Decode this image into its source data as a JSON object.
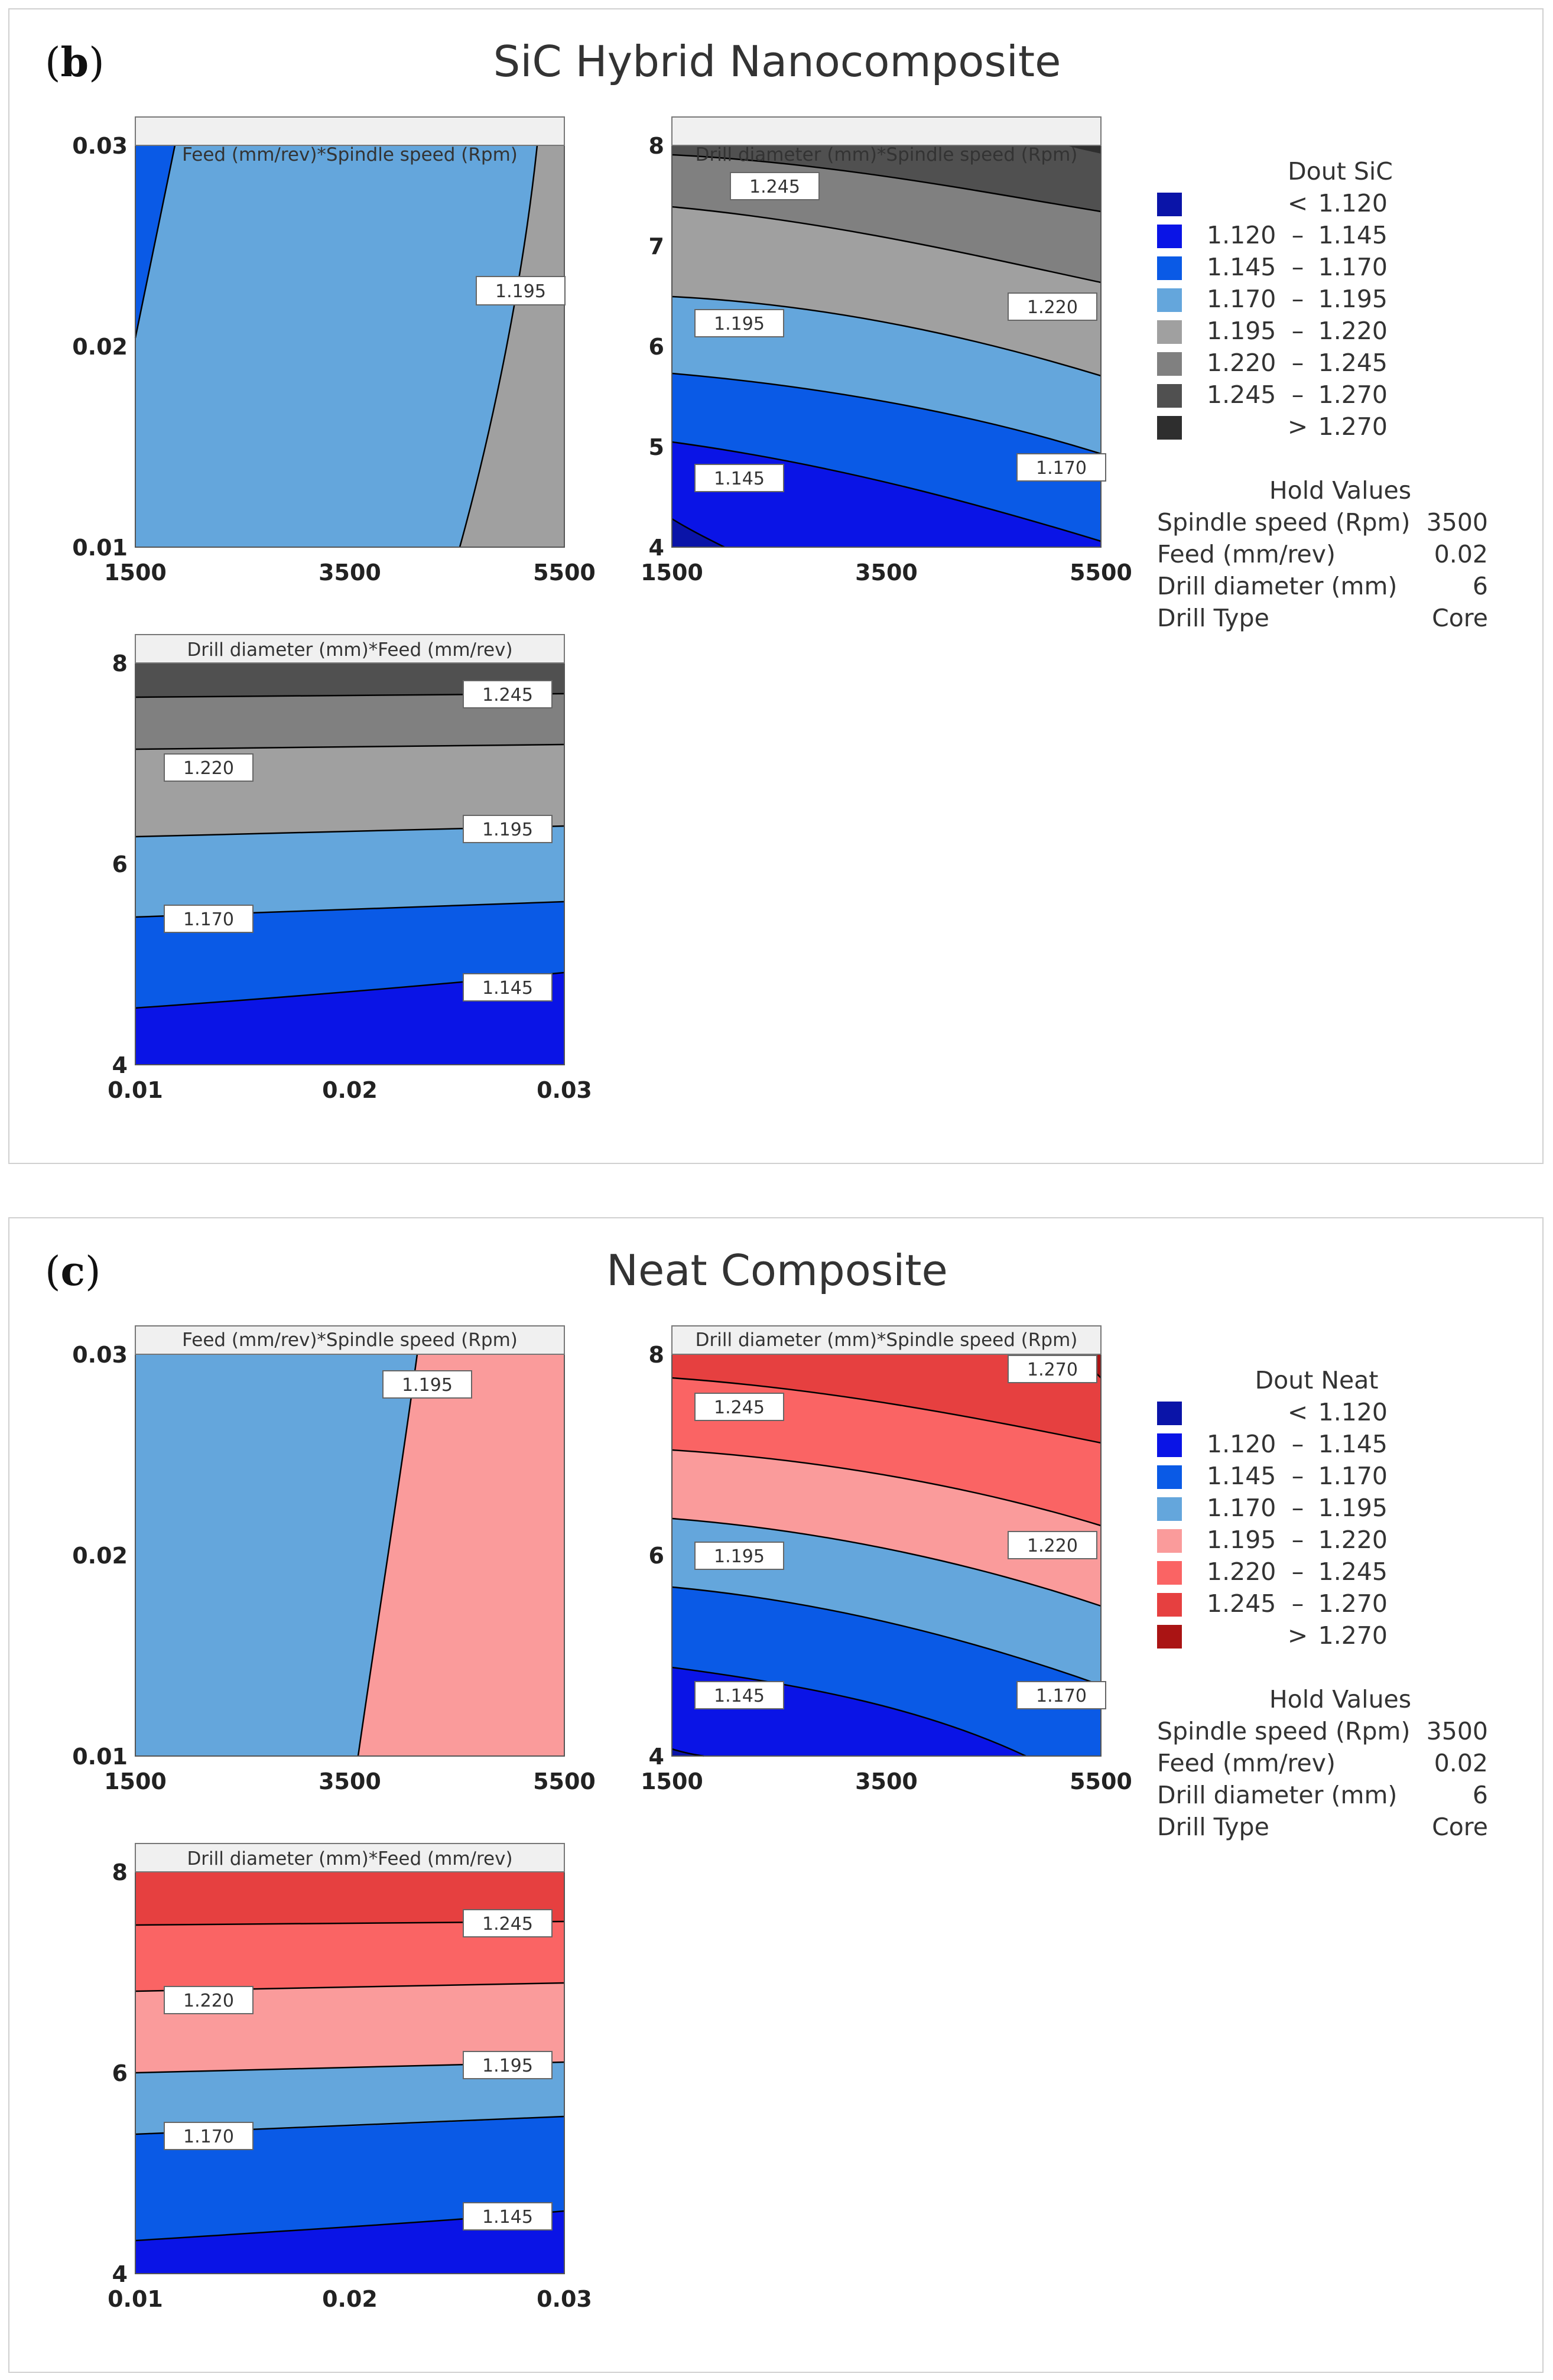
{
  "panels": [
    {
      "letter": "b",
      "title": "SiC Hybrid Nanocomposite",
      "legend_title": "Dout SiC",
      "legend": [
        {
          "lo": "",
          "sep": "<",
          "hi": "1.120",
          "color": "#0a14a8"
        },
        {
          "lo": "1.120",
          "sep": "–",
          "hi": "1.145",
          "color": "#0a14e6"
        },
        {
          "lo": "1.145",
          "sep": "–",
          "hi": "1.170",
          "color": "#0a5ae6"
        },
        {
          "lo": "1.170",
          "sep": "–",
          "hi": "1.195",
          "color": "#64a6dc"
        },
        {
          "lo": "1.195",
          "sep": "–",
          "hi": "1.220",
          "color": "#a0a0a0"
        },
        {
          "lo": "1.220",
          "sep": "–",
          "hi": "1.245",
          "color": "#808080"
        },
        {
          "lo": "1.245",
          "sep": "–",
          "hi": "1.270",
          "color": "#505050"
        },
        {
          "lo": "",
          "sep": ">",
          "hi": "1.270",
          "color": "#2e2e2e"
        }
      ],
      "hold_title": "Hold Values",
      "hold": [
        {
          "k": "Spindle speed (Rpm)",
          "v": "3500"
        },
        {
          "k": "Feed (mm/rev)",
          "v": "0.02"
        },
        {
          "k": "Drill diameter (mm)",
          "v": "6"
        },
        {
          "k": "Drill Type",
          "v": "Core"
        }
      ]
    },
    {
      "letter": "c",
      "title": "Neat Composite",
      "legend_title": "Dout Neat",
      "legend": [
        {
          "lo": "",
          "sep": "<",
          "hi": "1.120",
          "color": "#0a14a8"
        },
        {
          "lo": "1.120",
          "sep": "–",
          "hi": "1.145",
          "color": "#0a14e6"
        },
        {
          "lo": "1.145",
          "sep": "–",
          "hi": "1.170",
          "color": "#0a5ae6"
        },
        {
          "lo": "1.170",
          "sep": "–",
          "hi": "1.195",
          "color": "#64a6dc"
        },
        {
          "lo": "1.195",
          "sep": "–",
          "hi": "1.220",
          "color": "#fa9b9b"
        },
        {
          "lo": "1.220",
          "sep": "–",
          "hi": "1.245",
          "color": "#fa6464"
        },
        {
          "lo": "1.245",
          "sep": "–",
          "hi": "1.270",
          "color": "#e64040"
        },
        {
          "lo": "",
          "sep": ">",
          "hi": "1.270",
          "color": "#aa1414"
        }
      ],
      "hold_title": "Hold Values",
      "hold": [
        {
          "k": "Spindle speed (Rpm)",
          "v": "3500"
        },
        {
          "k": "Feed (mm/rev)",
          "v": "0.02"
        },
        {
          "k": "Drill diameter (mm)",
          "v": "6"
        },
        {
          "k": "Drill Type",
          "v": "Core"
        }
      ]
    }
  ],
  "chart_data": [
    {
      "type": "heatmap",
      "panel": "b",
      "title": "Feed (mm/rev)*Spindle speed (Rpm)",
      "x_ticks": [
        "1500",
        "3500",
        "5500"
      ],
      "y_ticks": [
        "0.01",
        "0.02",
        "0.03"
      ],
      "xlim": [
        1500,
        5500
      ],
      "ylim": [
        0.01,
        0.03
      ],
      "contour_labels": [
        "1.195"
      ]
    },
    {
      "type": "heatmap",
      "panel": "b",
      "title": "Drill diameter (mm)*Spindle speed (Rpm)",
      "x_ticks": [
        "1500",
        "3500",
        "5500"
      ],
      "y_ticks": [
        "4",
        "5",
        "6",
        "7",
        "8"
      ],
      "xlim": [
        1500,
        5500
      ],
      "ylim": [
        4,
        8
      ],
      "contour_labels": [
        "1.245",
        "1.220",
        "1.195",
        "1.170",
        "1.145"
      ]
    },
    {
      "type": "heatmap",
      "panel": "b",
      "title": "Drill diameter (mm)*Feed (mm/rev)",
      "x_ticks": [
        "0.01",
        "0.02",
        "0.03"
      ],
      "y_ticks": [
        "4",
        "6",
        "8"
      ],
      "xlim": [
        0.01,
        0.03
      ],
      "ylim": [
        4,
        8
      ],
      "contour_labels": [
        "1.245",
        "1.220",
        "1.195",
        "1.170",
        "1.145"
      ]
    },
    {
      "type": "heatmap",
      "panel": "c",
      "title": "Feed (mm/rev)*Spindle speed (Rpm)",
      "x_ticks": [
        "1500",
        "3500",
        "5500"
      ],
      "y_ticks": [
        "0.01",
        "0.02",
        "0.03"
      ],
      "xlim": [
        1500,
        5500
      ],
      "ylim": [
        0.01,
        0.03
      ],
      "contour_labels": [
        "1.195"
      ]
    },
    {
      "type": "heatmap",
      "panel": "c",
      "title": "Drill diameter (mm)*Spindle speed (Rpm)",
      "x_ticks": [
        "1500",
        "3500",
        "5500"
      ],
      "y_ticks": [
        "4",
        "6",
        "8"
      ],
      "xlim": [
        1500,
        5500
      ],
      "ylim": [
        4,
        8
      ],
      "contour_labels": [
        "1.270",
        "1.245",
        "1.220",
        "1.195",
        "1.170",
        "1.145"
      ]
    },
    {
      "type": "heatmap",
      "panel": "c",
      "title": "Drill diameter (mm)*Feed (mm/rev)",
      "x_ticks": [
        "0.01",
        "0.02",
        "0.03"
      ],
      "y_ticks": [
        "4",
        "6",
        "8"
      ],
      "xlim": [
        0.01,
        0.03
      ],
      "ylim": [
        4,
        8
      ],
      "contour_labels": [
        "1.245",
        "1.220",
        "1.195",
        "1.170",
        "1.145"
      ]
    }
  ]
}
